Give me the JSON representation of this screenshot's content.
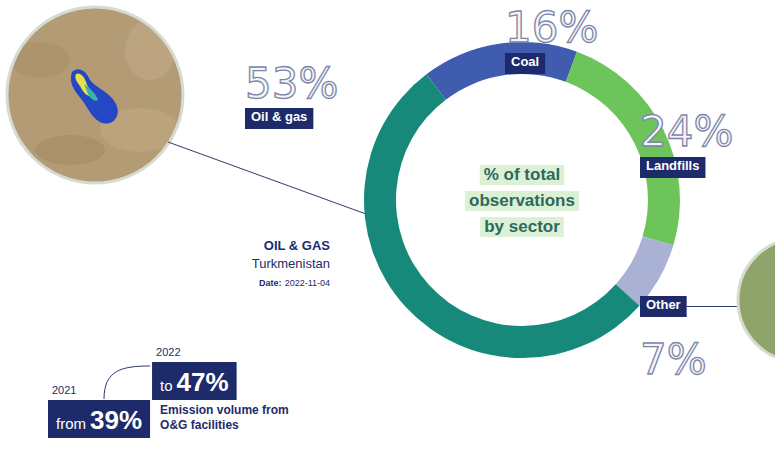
{
  "chart_data": {
    "type": "donut",
    "title": "% of total observations by sector",
    "categories": [
      "Coal",
      "Landfills",
      "Other",
      "Oil & gas"
    ],
    "values": [
      16,
      24,
      7,
      53
    ],
    "value_labels": [
      "16%",
      "24%",
      "7%",
      "53%"
    ],
    "colors": [
      "#3f5cae",
      "#6cc45a",
      "#a9b1d4",
      "#17897a"
    ],
    "data_labels": true,
    "annotations": {
      "image_caption": {
        "sector": "OIL & GAS",
        "country": "Turkmenistan",
        "date_label": "Date:",
        "date": "2022-11-04"
      },
      "emission_change": {
        "title": "Emission volume from O&G facilities",
        "from": {
          "year": "2021",
          "word": "from",
          "label": "39%"
        },
        "to": {
          "year": "2022",
          "word": "to",
          "label": "47%"
        }
      }
    }
  }
}
